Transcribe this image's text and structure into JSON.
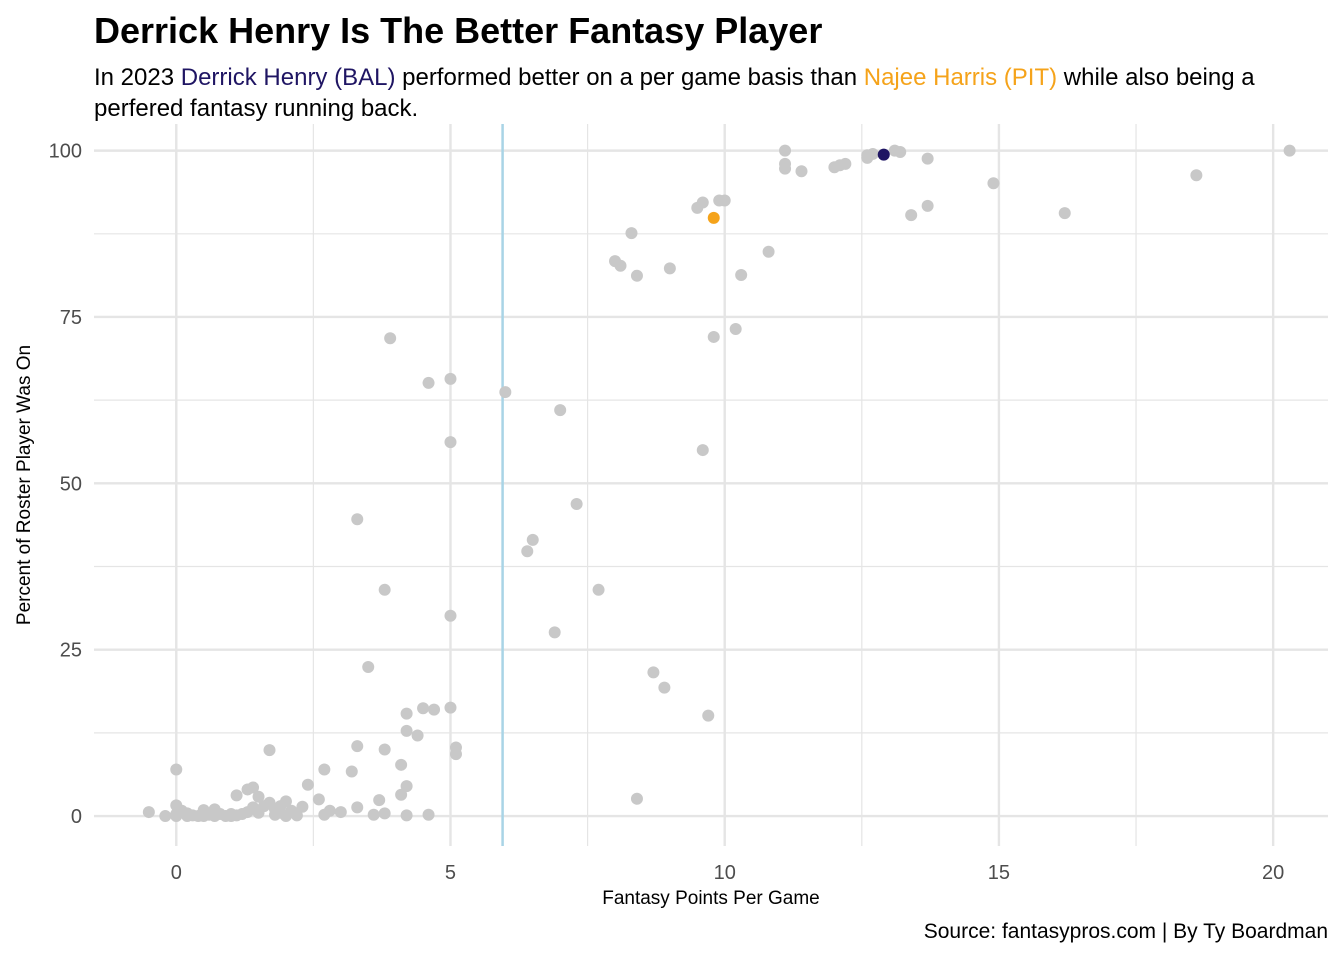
{
  "chart_data": {
    "type": "scatter",
    "title": "Derrick Henry Is The Better Fantasy Player",
    "subtitle": {
      "prefix": "In 2023 ",
      "henry_label": "Derrick Henry (BAL)",
      "middle": " performed better on a per game basis than ",
      "harris_label": "Najee Harris (PIT)",
      "suffix": " while also being a perfered fantasy running back."
    },
    "xlabel": "Fantasy Points Per Game",
    "ylabel": "Percent of Roster Player Was On",
    "caption": "Source: fantasypros.com | By Ty Boardman",
    "xlim": [
      -1.5,
      21
    ],
    "ylim": [
      -4.5,
      104
    ],
    "xticks": [
      0,
      5,
      10,
      15,
      20
    ],
    "yticks": [
      0,
      25,
      50,
      75,
      100
    ],
    "grid": true,
    "reference_line_x": 5.95,
    "colors": {
      "points": "#c8c8c8",
      "henry": "#1f1563",
      "harris": "#f5a31a",
      "reference_line": "#a9d4e6",
      "grid": "#e5e5e5"
    },
    "highlight_points": [
      {
        "player": "Derrick Henry (BAL)",
        "x": 12.9,
        "y": 99.4,
        "color": "#1f1563"
      },
      {
        "player": "Najee Harris (PIT)",
        "x": 9.8,
        "y": 89.9,
        "color": "#f5a31a"
      }
    ],
    "points": [
      [
        -0.5,
        0.6
      ],
      [
        -0.2,
        0.0
      ],
      [
        0.0,
        7.0
      ],
      [
        0.0,
        1.6
      ],
      [
        0.0,
        0.3
      ],
      [
        0.0,
        0.0
      ],
      [
        0.1,
        0.8
      ],
      [
        0.2,
        0.0
      ],
      [
        0.2,
        0.4
      ],
      [
        0.3,
        0.1
      ],
      [
        0.4,
        0.0
      ],
      [
        0.5,
        0.5
      ],
      [
        0.5,
        0.9
      ],
      [
        0.5,
        0.0
      ],
      [
        0.6,
        0.2
      ],
      [
        0.7,
        0.0
      ],
      [
        0.7,
        1.0
      ],
      [
        0.8,
        0.3
      ],
      [
        0.9,
        0.0
      ],
      [
        1.0,
        0.0
      ],
      [
        1.0,
        0.3
      ],
      [
        1.1,
        0.1
      ],
      [
        1.1,
        3.1
      ],
      [
        1.2,
        0.3
      ],
      [
        1.3,
        4.0
      ],
      [
        1.3,
        0.6
      ],
      [
        1.4,
        1.3
      ],
      [
        1.4,
        4.3
      ],
      [
        1.5,
        2.9
      ],
      [
        1.5,
        0.5
      ],
      [
        1.6,
        1.5
      ],
      [
        1.7,
        9.9
      ],
      [
        1.7,
        2.0
      ],
      [
        1.8,
        1.0
      ],
      [
        1.8,
        0.2
      ],
      [
        1.9,
        0.5
      ],
      [
        1.9,
        1.5
      ],
      [
        2.0,
        2.2
      ],
      [
        2.0,
        0.0
      ],
      [
        2.1,
        0.8
      ],
      [
        2.2,
        0.1
      ],
      [
        2.3,
        1.4
      ],
      [
        2.4,
        4.7
      ],
      [
        2.6,
        2.5
      ],
      [
        2.7,
        7.0
      ],
      [
        2.7,
        0.2
      ],
      [
        2.8,
        0.8
      ],
      [
        3.0,
        0.6
      ],
      [
        3.2,
        6.7
      ],
      [
        3.3,
        10.5
      ],
      [
        3.3,
        44.6
      ],
      [
        3.3,
        1.3
      ],
      [
        3.5,
        22.4
      ],
      [
        3.6,
        0.2
      ],
      [
        3.7,
        2.4
      ],
      [
        3.8,
        10.0
      ],
      [
        3.8,
        34.0
      ],
      [
        3.8,
        0.4
      ],
      [
        3.9,
        71.8
      ],
      [
        4.1,
        7.7
      ],
      [
        4.1,
        3.2
      ],
      [
        4.2,
        15.4
      ],
      [
        4.2,
        12.8
      ],
      [
        4.2,
        4.5
      ],
      [
        4.2,
        0.1
      ],
      [
        4.4,
        12.1
      ],
      [
        4.5,
        16.2
      ],
      [
        4.6,
        65.1
      ],
      [
        4.6,
        0.2
      ],
      [
        4.7,
        16.0
      ],
      [
        5.0,
        65.7
      ],
      [
        5.0,
        56.2
      ],
      [
        5.0,
        30.1
      ],
      [
        5.0,
        16.3
      ],
      [
        5.1,
        10.3
      ],
      [
        5.1,
        9.3
      ],
      [
        6.0,
        63.7
      ],
      [
        6.4,
        39.8
      ],
      [
        6.5,
        41.5
      ],
      [
        6.9,
        27.6
      ],
      [
        7.0,
        61.0
      ],
      [
        7.3,
        46.9
      ],
      [
        7.7,
        34.0
      ],
      [
        8.0,
        83.4
      ],
      [
        8.1,
        82.7
      ],
      [
        8.3,
        87.6
      ],
      [
        8.4,
        81.2
      ],
      [
        8.4,
        2.6
      ],
      [
        8.7,
        21.6
      ],
      [
        8.9,
        19.3
      ],
      [
        9.0,
        82.3
      ],
      [
        9.5,
        91.4
      ],
      [
        9.6,
        92.2
      ],
      [
        9.6,
        55.0
      ],
      [
        9.7,
        15.1
      ],
      [
        9.8,
        72.0
      ],
      [
        9.9,
        92.5
      ],
      [
        10.0,
        92.5
      ],
      [
        10.2,
        73.2
      ],
      [
        10.3,
        81.3
      ],
      [
        10.8,
        84.8
      ],
      [
        11.1,
        100.0
      ],
      [
        11.1,
        98.0
      ],
      [
        11.1,
        97.3
      ],
      [
        11.4,
        96.9
      ],
      [
        12.0,
        97.5
      ],
      [
        12.1,
        97.8
      ],
      [
        12.2,
        98.0
      ],
      [
        12.6,
        98.9
      ],
      [
        12.6,
        99.3
      ],
      [
        12.7,
        99.5
      ],
      [
        13.1,
        100.0
      ],
      [
        13.2,
        99.8
      ],
      [
        13.4,
        90.3
      ],
      [
        13.7,
        98.8
      ],
      [
        13.7,
        91.7
      ],
      [
        14.9,
        95.1
      ],
      [
        16.2,
        90.6
      ],
      [
        18.6,
        96.3
      ],
      [
        20.3,
        100.0
      ]
    ]
  }
}
